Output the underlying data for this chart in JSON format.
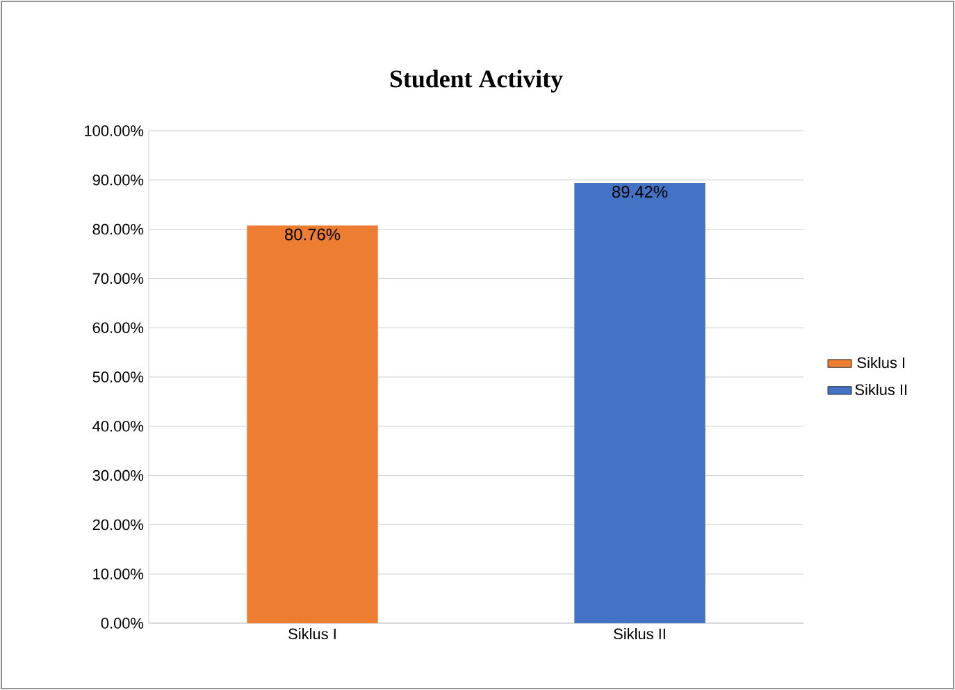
{
  "chart_data": {
    "type": "bar",
    "title": "Student Activity",
    "categories": [
      "Siklus I",
      "Siklus II"
    ],
    "series": [
      {
        "name": "Siklus I",
        "color": "#ed7d31",
        "values": [
          80.76,
          null
        ],
        "value_labels": [
          "80.76%",
          null
        ]
      },
      {
        "name": "Siklus II",
        "color": "#4472c4",
        "values": [
          null,
          89.42
        ],
        "value_labels": [
          null,
          "89.42%"
        ]
      }
    ],
    "ylim": [
      0,
      100
    ],
    "yticks": [
      {
        "value": 0,
        "label": "0.00%"
      },
      {
        "value": 10,
        "label": "10.00%"
      },
      {
        "value": 20,
        "label": "20.00%"
      },
      {
        "value": 30,
        "label": "30.00%"
      },
      {
        "value": 40,
        "label": "40.00%"
      },
      {
        "value": 50,
        "label": "50.00%"
      },
      {
        "value": 60,
        "label": "60.00%"
      },
      {
        "value": 70,
        "label": "70.00%"
      },
      {
        "value": 80,
        "label": "80.00%"
      },
      {
        "value": 90,
        "label": "90.00%"
      },
      {
        "value": 100,
        "label": "100.00%"
      }
    ],
    "grid": "y",
    "legend": "right"
  }
}
